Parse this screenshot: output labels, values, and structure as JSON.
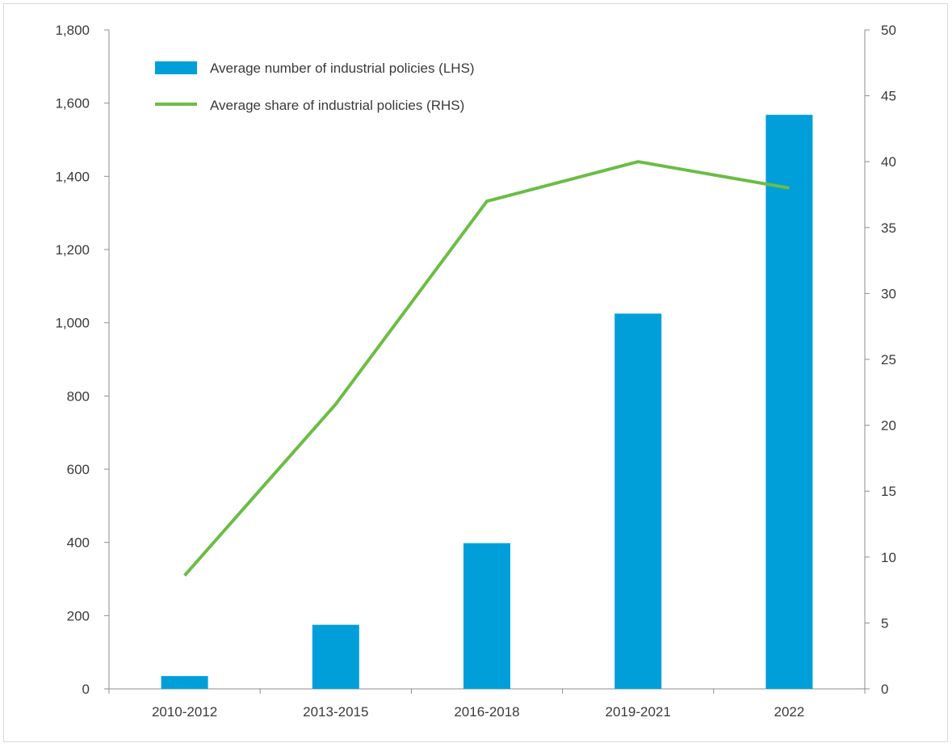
{
  "chart_data": {
    "type": "bar",
    "categories": [
      "2010-2012",
      "2013-2015",
      "2016-2018",
      "2019-2021",
      "2022"
    ],
    "series": [
      {
        "name": "Average number of industrial policies (LHS)",
        "type": "bar",
        "axis": "left",
        "color": "#009fda",
        "values": [
          35,
          175,
          398,
          1025,
          1568
        ]
      },
      {
        "name": "Average share of industrial policies (RHS)",
        "type": "line",
        "axis": "right",
        "color": "#6bbd45",
        "values": [
          8.6,
          21.6,
          37.0,
          40.0,
          38.0
        ]
      }
    ],
    "left_axis": {
      "ylim": [
        0,
        1800
      ],
      "ticks": [
        "0",
        "200",
        "400",
        "600",
        "800",
        "1,000",
        "1,200",
        "1,400",
        "1,600",
        "1,800"
      ]
    },
    "right_axis": {
      "ylim": [
        0,
        50
      ],
      "ticks": [
        "0",
        "5",
        "10",
        "15",
        "20",
        "25",
        "30",
        "35",
        "40",
        "45",
        "50"
      ]
    },
    "title": "",
    "xlabel": "",
    "ylabel": "",
    "grid": false,
    "legend_position": "top-left"
  }
}
